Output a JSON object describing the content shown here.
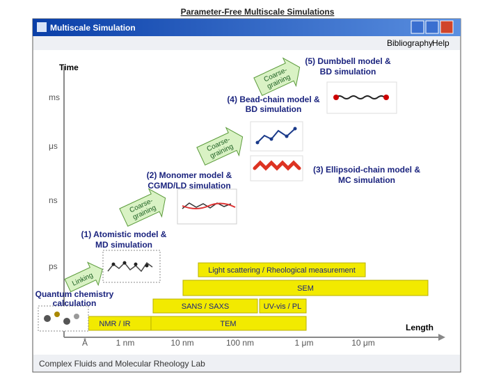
{
  "slide_title": "Parameter-Free Multiscale Simulations",
  "window": {
    "title": "Multiscale Simulation",
    "menu": [
      "Bibliography",
      "Help"
    ]
  },
  "axes": {
    "y_label": "Time",
    "y_ticks": [
      "ms",
      "μs",
      "ns",
      "ps"
    ],
    "x_label": "Length",
    "x_ticks": [
      "Å",
      "1 nm",
      "10 nm",
      "100 nm",
      "1 μm",
      "10 μm"
    ]
  },
  "stages": [
    {
      "lines": [
        "(5) Dumbbell model &",
        "BD simulation"
      ]
    },
    {
      "lines": [
        "(4) Bead-chain model &",
        "BD simulation"
      ]
    },
    {
      "lines": [
        "(3) Ellipsoid-chain model &",
        "MC simulation"
      ]
    },
    {
      "lines": [
        "(2) Monomer model &",
        "CGMD/LD simulation"
      ]
    },
    {
      "lines": [
        "(1) Atomistic model &",
        "MD simulation"
      ]
    },
    {
      "lines": [
        "Quantum chemistry",
        "calculation"
      ]
    }
  ],
  "arrows": [
    {
      "lines": [
        "Coarse-",
        "graining"
      ]
    },
    {
      "lines": [
        "Coarse-",
        "graining"
      ]
    },
    {
      "lines": [
        "Coarse-",
        "graining"
      ]
    },
    {
      "lines": [
        "Linking"
      ]
    }
  ],
  "experiments": [
    "Light scattering / Rheological measurement",
    "SEM",
    "SANS / SAXS",
    "UV-vis / PL",
    "NMR / IR",
    "TEM"
  ],
  "footer": "Complex Fluids and Molecular Rheology Lab"
}
